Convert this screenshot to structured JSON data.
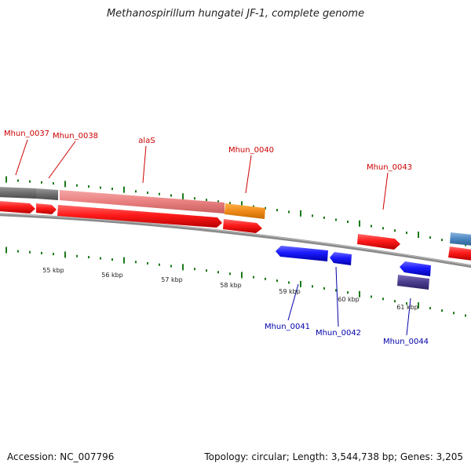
{
  "title": "Methanospirillum hungatei JF-1, complete genome",
  "scale_labels": [
    "55 kbp",
    "56 kbp",
    "57 kbp",
    "58 kbp",
    "59 kbp",
    "60 kbp",
    "61 kbp"
  ],
  "genes_forward": [
    {
      "label": "Mhun_0037",
      "color": "#cc0000"
    },
    {
      "label": "Mhun_0038",
      "color": "#cc0000"
    },
    {
      "label": "alaS",
      "color": "#cc0000"
    },
    {
      "label": "Mhun_0040",
      "color": "#cc0000"
    },
    {
      "label": "Mhun_0043",
      "color": "#cc0000"
    }
  ],
  "genes_reverse": [
    {
      "label": "Mhun_0041",
      "color": "#0000aa"
    },
    {
      "label": "Mhun_0042",
      "color": "#0000aa"
    },
    {
      "label": "Mhun_0044",
      "color": "#0000aa"
    }
  ],
  "feature_colors": {
    "forward_gene": "#ee1111",
    "reverse_gene": "#1111dd",
    "rna": "#f08a1a",
    "other": "#4a3c8c",
    "backbone": "#7a7a7a",
    "tick": "#1a7a1a"
  },
  "footer": {
    "accession": "Accession: NC_007796",
    "summary": "Topology: circular; Length: 3,544,738 bp; Genes: 3,205"
  }
}
